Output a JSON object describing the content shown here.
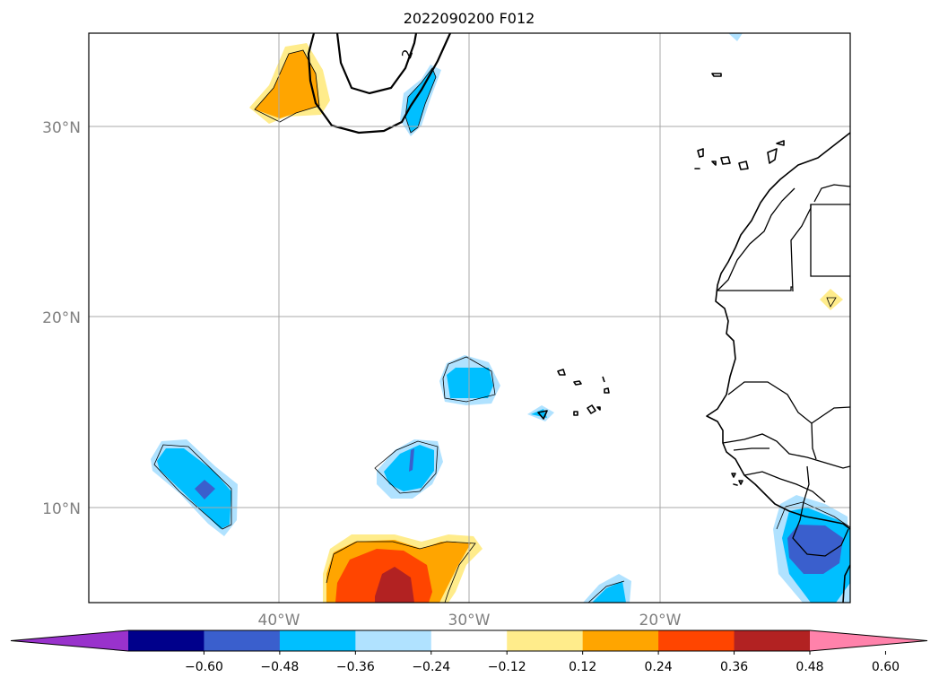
{
  "title": "2022090200 F012",
  "map": {
    "lat_labels": [
      "30°N",
      "20°N",
      "10°N"
    ],
    "lon_labels": [
      "40°W",
      "30°W",
      "20°W"
    ],
    "contour_label": "2"
  },
  "colorbar": {
    "ticks": [
      "−0.60",
      "−0.48",
      "−0.36",
      "−0.24",
      "−0.12",
      "0.12",
      "0.24",
      "0.36",
      "0.48",
      "0.60"
    ],
    "colors": [
      "#9932cc",
      "#00008b",
      "#3a5fcd",
      "#00bfff",
      "#b0e2ff",
      "#ffffff",
      "#ffec8b",
      "#ffa500",
      "#ff4500",
      "#b22222",
      "#ff82ab"
    ],
    "extend": "both"
  }
}
